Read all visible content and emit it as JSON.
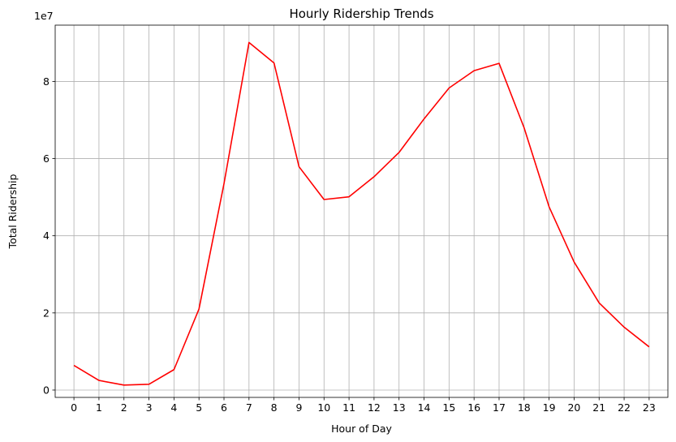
{
  "chart_data": {
    "type": "line",
    "title": "Hourly Ridership Trends",
    "xlabel": "Hour of Day",
    "ylabel": "Total Ridership",
    "offset_label": "1e7",
    "x": [
      0,
      1,
      2,
      3,
      4,
      5,
      6,
      7,
      8,
      9,
      10,
      11,
      12,
      13,
      14,
      15,
      16,
      17,
      18,
      19,
      20,
      21,
      22,
      23
    ],
    "x_tick_labels": [
      "0",
      "1",
      "2",
      "3",
      "4",
      "5",
      "6",
      "7",
      "8",
      "9",
      "10",
      "11",
      "12",
      "13",
      "14",
      "15",
      "16",
      "17",
      "18",
      "19",
      "20",
      "21",
      "22",
      "23"
    ],
    "series": [
      {
        "values": [
          6400000,
          2500000,
          1300000,
          1500000,
          5300000,
          21000000,
          53500000,
          90100000,
          84800000,
          57900000,
          49400000,
          50100000,
          55300000,
          61600000,
          70300000,
          78300000,
          82800000,
          84700000,
          68000000,
          47500000,
          33200000,
          22600000,
          16300000,
          11200000
        ],
        "color": "#ff0000"
      }
    ],
    "y_ticks": [
      0,
      20000000,
      40000000,
      60000000,
      80000000
    ],
    "y_tick_labels": [
      "0",
      "2",
      "4",
      "6",
      "8"
    ],
    "xlim": [
      -0.75,
      23.75
    ],
    "ylim": [
      -1900000,
      94600000
    ],
    "grid": true,
    "grid_color": "#b0b0b0"
  }
}
